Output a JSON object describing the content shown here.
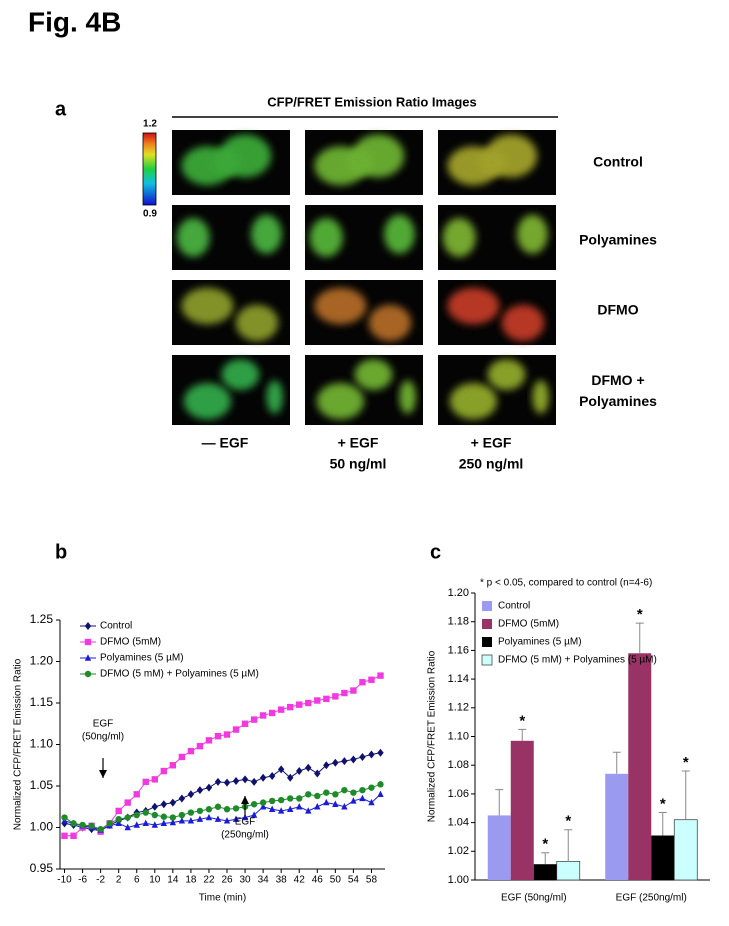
{
  "figure_label": "Fig. 4B",
  "panel_a": {
    "label": "a",
    "title": "CFP/FRET Emission Ratio Images",
    "colorbar_max": 1.2,
    "colorbar_min": 0.9,
    "rows": [
      [
        "Control"
      ],
      [
        "Polyamines"
      ],
      [
        "DFMO"
      ],
      [
        "DFMO +",
        "Polyamines"
      ]
    ],
    "columns": [
      [
        "— EGF"
      ],
      [
        "+ EGF",
        "50 ng/ml"
      ],
      [
        "+ EGF",
        "250 ng/ml"
      ]
    ]
  },
  "chart_data": [
    {
      "type": "line",
      "label": "b",
      "ylabel": "Normalized CFP/FRET Emission Ratio",
      "xlabel": "Time (min)",
      "x": [
        -10,
        -8,
        -6,
        -4,
        -2,
        0,
        2,
        4,
        6,
        8,
        10,
        12,
        14,
        16,
        18,
        20,
        22,
        24,
        26,
        28,
        30,
        32,
        34,
        36,
        38,
        40,
        42,
        44,
        46,
        48,
        50,
        52,
        54,
        56,
        58,
        60
      ],
      "xlim": [
        -11,
        61
      ],
      "xticks": [
        -10,
        -6,
        -2,
        2,
        6,
        10,
        14,
        18,
        22,
        26,
        30,
        34,
        38,
        42,
        46,
        50,
        54,
        58
      ],
      "ylim": [
        0.95,
        1.25
      ],
      "yticks": [
        0.95,
        {
          "value": 1,
          "label": "1.00"
        },
        1.05,
        {
          "value": 1.1,
          "label": "1.10"
        },
        1.15,
        {
          "value": 1.2,
          "label": "1.20"
        },
        1.25
      ],
      "annotations": [
        [
          "EGF",
          "(50ng/ml)"
        ],
        [
          "EGF",
          "(250ng/ml)"
        ]
      ],
      "series": [
        {
          "name": "Control",
          "color": "#10106e",
          "marker": "diamond",
          "values": [
            1.005,
            1.003,
            1.0,
            0.998,
            0.996,
            1.003,
            1.008,
            1.012,
            1.018,
            1.02,
            1.025,
            1.028,
            1.03,
            1.035,
            1.04,
            1.045,
            1.048,
            1.055,
            1.054,
            1.056,
            1.058,
            1.055,
            1.06,
            1.062,
            1.07,
            1.06,
            1.068,
            1.072,
            1.065,
            1.075,
            1.078,
            1.08,
            1.082,
            1.085,
            1.088,
            1.09
          ]
        },
        {
          "name": "DFMO (5mM)",
          "color": "#f03ae0",
          "marker": "square",
          "values": [
            0.99,
            0.99,
            1.0,
            1.002,
            0.995,
            1.005,
            1.02,
            1.03,
            1.04,
            1.055,
            1.058,
            1.068,
            1.075,
            1.085,
            1.092,
            1.098,
            1.105,
            1.11,
            1.112,
            1.118,
            1.125,
            1.13,
            1.135,
            1.138,
            1.142,
            1.145,
            1.148,
            1.15,
            1.153,
            1.155,
            1.158,
            1.162,
            1.165,
            1.175,
            1.178,
            1.183
          ]
        },
        {
          "name": "Polyamines (5 µM)",
          "color": "#1c1cd8",
          "marker": "triangle",
          "values": [
            1.008,
            1.005,
            1.002,
            1.0,
            0.997,
            1.002,
            1.005,
            1.0,
            1.003,
            1.005,
            1.003,
            1.005,
            1.006,
            1.008,
            1.008,
            1.01,
            1.012,
            1.01,
            1.008,
            1.01,
            1.012,
            1.015,
            1.025,
            1.022,
            1.02,
            1.022,
            1.025,
            1.02,
            1.025,
            1.03,
            1.028,
            1.025,
            1.032,
            1.035,
            1.03,
            1.04
          ]
        },
        {
          "name": "DFMO (5 mM) + Polyamines (5 µM)",
          "color": "#1e8a2a",
          "marker": "circle",
          "values": [
            1.012,
            1.005,
            1.003,
            1.002,
            0.998,
            1.005,
            1.01,
            1.012,
            1.015,
            1.018,
            1.015,
            1.013,
            1.012,
            1.015,
            1.018,
            1.02,
            1.022,
            1.025,
            1.022,
            1.023,
            1.025,
            1.028,
            1.03,
            1.032,
            1.033,
            1.035,
            1.035,
            1.04,
            1.038,
            1.042,
            1.04,
            1.045,
            1.042,
            1.045,
            1.048,
            1.052
          ]
        }
      ]
    },
    {
      "type": "bar",
      "label": "c",
      "note": "* p < 0.05, compared to control (n=4-6)",
      "ylabel": "Normalized CFP/FRET Emission Ratio",
      "categories": [
        "EGF (50ng/ml)",
        "EGF (250ng/ml)"
      ],
      "ylim": [
        1,
        1.2
      ],
      "yticks": [
        {
          "value": 1,
          "label": "1.00"
        },
        1.02,
        1.04,
        1.06,
        1.08,
        {
          "value": 1.1,
          "label": "1.10"
        },
        1.12,
        1.14,
        1.16,
        1.18,
        {
          "value": 1.2,
          "label": "1.20"
        }
      ],
      "series": [
        {
          "name": "Control",
          "color": "#9a9af0",
          "values": [
            1.045,
            1.074
          ],
          "errors": [
            0.018,
            0.015
          ],
          "significance": [
            null,
            null
          ]
        },
        {
          "name": "DFMO (5mM)",
          "color": "#993366",
          "values": [
            1.097,
            1.158
          ],
          "errors": [
            0.008,
            0.021
          ],
          "significance": [
            "*",
            "*"
          ]
        },
        {
          "name": "Polyamines (5 µM)",
          "color": "#000000",
          "values": [
            1.011,
            1.031
          ],
          "errors": [
            0.008,
            0.016
          ],
          "significance": [
            "*",
            "*"
          ]
        },
        {
          "name": "DFMO (5 mM) + Polyamines (5 µM)",
          "color": "#ccffff",
          "values": [
            1.013,
            1.042
          ],
          "errors": [
            0.022,
            0.034
          ],
          "significance": [
            "*",
            "*"
          ]
        }
      ]
    }
  ]
}
